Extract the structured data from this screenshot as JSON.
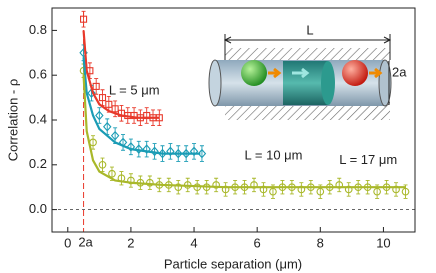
{
  "chart_data": {
    "type": "scatter",
    "xlabel": "Particle separation (μm)",
    "ylabel": "Correlation - ρ",
    "xlim": [
      -0.5,
      11
    ],
    "ylim": [
      -0.1,
      0.9
    ],
    "xticks": [
      0,
      2,
      4,
      6,
      8,
      10
    ],
    "yticks": [
      {
        "value": 0,
        "label": "0.0"
      },
      0.2,
      0.4,
      0.6,
      0.8
    ],
    "hline": 0,
    "vline": {
      "x": 0.5,
      "label": "2a",
      "color": "#e8392b"
    },
    "series": [
      {
        "name": "L = 5 μm",
        "color": "#e8392b",
        "marker": "square",
        "error": 0.035,
        "x": [
          0.5,
          0.7,
          0.9,
          1.1,
          1.3,
          1.5,
          1.7,
          1.9,
          2.1,
          2.3,
          2.5,
          2.7,
          2.9
        ],
        "values": [
          0.85,
          0.62,
          0.55,
          0.5,
          0.47,
          0.45,
          0.43,
          0.42,
          0.42,
          0.41,
          0.42,
          0.41,
          0.41
        ],
        "fit_x": [
          0.5,
          0.6,
          0.8,
          1,
          1.3,
          1.7,
          2.2,
          2.9
        ],
        "fit_values": [
          0.8,
          0.62,
          0.52,
          0.47,
          0.44,
          0.42,
          0.41,
          0.41
        ]
      },
      {
        "name": "L = 10 μm",
        "color": "#1a9cb5",
        "marker": "diamond",
        "error": 0.035,
        "x": [
          0.5,
          0.75,
          1,
          1.25,
          1.5,
          1.75,
          2,
          2.25,
          2.5,
          2.75,
          3,
          3.25,
          3.5,
          3.75,
          4,
          4.25
        ],
        "values": [
          0.7,
          0.52,
          0.42,
          0.37,
          0.33,
          0.3,
          0.28,
          0.27,
          0.27,
          0.26,
          0.25,
          0.26,
          0.25,
          0.25,
          0.26,
          0.25
        ],
        "fit_x": [
          0.5,
          0.6,
          0.8,
          1,
          1.5,
          2,
          3,
          4.2
        ],
        "fit_values": [
          0.68,
          0.52,
          0.42,
          0.36,
          0.3,
          0.27,
          0.25,
          0.25
        ]
      },
      {
        "name": "L = 17 μm",
        "color": "#a9b82a",
        "marker": "circle",
        "error": 0.03,
        "x": [
          0.5,
          0.8,
          1.1,
          1.4,
          1.7,
          2,
          2.3,
          2.6,
          2.9,
          3.2,
          3.5,
          3.8,
          4.1,
          4.4,
          4.7,
          5,
          5.3,
          5.6,
          5.9,
          6.2,
          6.5,
          6.8,
          7.1,
          7.4,
          7.7,
          8,
          8.3,
          8.6,
          8.9,
          9.2,
          9.5,
          9.8,
          10.1,
          10.4,
          10.7
        ],
        "values": [
          0.62,
          0.3,
          0.2,
          0.16,
          0.14,
          0.13,
          0.12,
          0.12,
          0.11,
          0.11,
          0.1,
          0.11,
          0.1,
          0.1,
          0.11,
          0.09,
          0.1,
          0.1,
          0.11,
          0.09,
          0.08,
          0.1,
          0.1,
          0.09,
          0.1,
          0.08,
          0.1,
          0.11,
          0.09,
          0.1,
          0.1,
          0.08,
          0.1,
          0.09,
          0.08
        ],
        "fit_x": [
          0.5,
          0.6,
          0.8,
          1,
          1.5,
          2,
          3,
          5,
          8,
          10.7
        ],
        "fit_values": [
          0.6,
          0.35,
          0.22,
          0.17,
          0.13,
          0.12,
          0.11,
          0.1,
          0.1,
          0.1
        ]
      }
    ],
    "inset": {
      "length_label": "L",
      "diameter_label": "2a"
    }
  }
}
